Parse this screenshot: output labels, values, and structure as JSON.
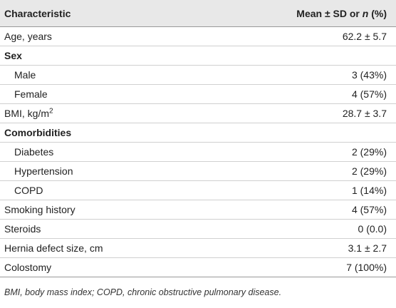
{
  "header": {
    "characteristic": "Characteristic",
    "value": {
      "before": "Mean ± SD or ",
      "italic": "n",
      "after": " (%)"
    }
  },
  "rows": [
    {
      "label": "Age, years",
      "value": "62.2 ± 5.7"
    },
    {
      "label": "Sex",
      "items": [
        {
          "label": "Male",
          "value": "3 (43%)"
        },
        {
          "label": "Female",
          "value": "4 (57%)"
        }
      ]
    },
    {
      "label": {
        "text": "BMI, kg/m",
        "sup": "2"
      },
      "value": "28.7 ± 3.7"
    },
    {
      "label": "Comorbidities",
      "items": [
        {
          "label": "Diabetes",
          "value": "2 (29%)"
        },
        {
          "label": "Hypertension",
          "value": "2 (29%)"
        },
        {
          "label": "COPD",
          "value": "1 (14%)"
        }
      ]
    },
    {
      "label": "Smoking history",
      "value": "4 (57%)"
    },
    {
      "label": "Steroids",
      "value": "0 (0.0)"
    },
    {
      "label": "Hernia defect size, cm",
      "value": "3.1 ± 2.7"
    },
    {
      "label": "Colostomy",
      "value": "7 (100%)"
    }
  ],
  "footnote": "BMI, body mass index; COPD, chronic obstructive pulmonary disease."
}
